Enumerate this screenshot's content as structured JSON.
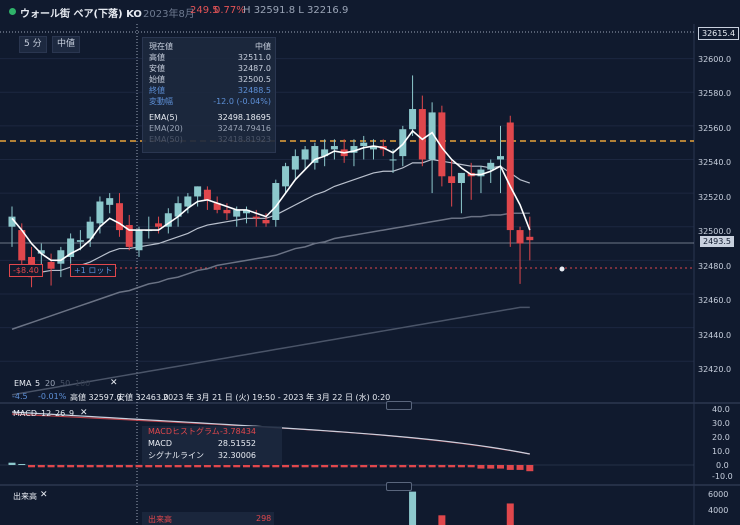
{
  "header": {
    "title": "ウォール街 ベア(下落) KO",
    "period": "2023年8月",
    "price": "249.5",
    "change": "0.77%",
    "hl": "H 32591.8 L 32216.9"
  },
  "toolbar": {
    "interval": "5 分",
    "price_type": "中値"
  },
  "tooltip": {
    "header_left": "現在値",
    "header_right": "中値",
    "rows": [
      {
        "label": "高値",
        "value": "32511.0"
      },
      {
        "label": "安値",
        "value": "32487.0"
      },
      {
        "label": "始値",
        "value": "32500.5"
      },
      {
        "label": "終値",
        "value": "32488.5"
      },
      {
        "label": "変動幅",
        "value": "-12.0 (-0.04%)"
      }
    ],
    "ema_rows": [
      {
        "label": "EMA(5)",
        "value": "32498.18695"
      },
      {
        "label": "EMA(20)",
        "value": "32474.79416"
      },
      {
        "label": "EMA(50)",
        "value": "32418.81923"
      }
    ]
  },
  "price_axis": [
    "32600.0",
    "32580.0",
    "32560.0",
    "32540.0",
    "32520.0",
    "32500.0",
    "32480.0",
    "32460.0",
    "32440.0",
    "32420.0"
  ],
  "price_axis_top": "32615.4",
  "current_price_tag": "2493.5",
  "position": {
    "pnl": "-$8.40",
    "lots": "+1 ロット"
  },
  "ema_legend": {
    "name": "EMA",
    "p1": "5",
    "p2": "20",
    "p3": "50",
    "p4": "100"
  },
  "range_bar": {
    "pct1": "-4.5",
    "pct2": "-0.01%",
    "high": "高値 32597.0",
    "low": "安値 32463.0",
    "range": "2023 年 3月 21 日 (火) 19:50 - 2023 年 3月 22 日 (水) 0:20"
  },
  "macd": {
    "label": "MACD",
    "p1": "12",
    "p2": "26",
    "p3": "9",
    "hist_label": "MACDヒストグラム",
    "hist_value": "-3.78434",
    "macd_label": "MACD",
    "macd_value": "28.51552",
    "signal_label": "シグナルライン",
    "signal_value": "32.30006",
    "axis": [
      "40.0",
      "30.0",
      "20.0",
      "10.0",
      "0.0",
      "-10.0"
    ]
  },
  "volume": {
    "label": "出来高",
    "value_label": "出来高",
    "value": "298",
    "axis": [
      "6000",
      "4000"
    ]
  },
  "colors": {
    "up": "#8cc8cc",
    "down": "#e0474c",
    "bg": "#101a2e",
    "dash": "#e8a33a"
  },
  "chart_data": {
    "type": "candlestick",
    "candles": [
      {
        "o": 32500,
        "h": 32512,
        "l": 32488,
        "c": 32506
      },
      {
        "o": 32498,
        "h": 32502,
        "l": 32476,
        "c": 32480
      },
      {
        "o": 32482,
        "h": 32488,
        "l": 32464,
        "c": 32470
      },
      {
        "o": 32484,
        "h": 32490,
        "l": 32474,
        "c": 32486
      },
      {
        "o": 32479,
        "h": 32484,
        "l": 32465,
        "c": 32475
      },
      {
        "o": 32478,
        "h": 32488,
        "l": 32470,
        "c": 32486
      },
      {
        "o": 32482,
        "h": 32496,
        "l": 32478,
        "c": 32493
      },
      {
        "o": 32491,
        "h": 32498,
        "l": 32486,
        "c": 32492
      },
      {
        "o": 32493,
        "h": 32506,
        "l": 32488,
        "c": 32503
      },
      {
        "o": 32502,
        "h": 32518,
        "l": 32496,
        "c": 32515
      },
      {
        "o": 32513,
        "h": 32520,
        "l": 32508,
        "c": 32517
      },
      {
        "o": 32514,
        "h": 32520,
        "l": 32494,
        "c": 32498
      },
      {
        "o": 32501,
        "h": 32507,
        "l": 32486,
        "c": 32488
      },
      {
        "o": 32486,
        "h": 32500,
        "l": 32482,
        "c": 32498
      },
      {
        "o": 32498,
        "h": 32506,
        "l": 32493,
        "c": 32498
      },
      {
        "o": 32502,
        "h": 32506,
        "l": 32496,
        "c": 32500
      },
      {
        "o": 32500,
        "h": 32511,
        "l": 32496,
        "c": 32508
      },
      {
        "o": 32506,
        "h": 32518,
        "l": 32500,
        "c": 32514
      },
      {
        "o": 32512,
        "h": 32520,
        "l": 32508,
        "c": 32518
      },
      {
        "o": 32518,
        "h": 32524,
        "l": 32512,
        "c": 32524
      },
      {
        "o": 32522,
        "h": 32524,
        "l": 32510,
        "c": 32516
      },
      {
        "o": 32514,
        "h": 32518,
        "l": 32508,
        "c": 32510
      },
      {
        "o": 32510,
        "h": 32514,
        "l": 32504,
        "c": 32508
      },
      {
        "o": 32506,
        "h": 32512,
        "l": 32500,
        "c": 32510
      },
      {
        "o": 32508,
        "h": 32512,
        "l": 32502,
        "c": 32510
      },
      {
        "o": 32506,
        "h": 32510,
        "l": 32500,
        "c": 32505
      },
      {
        "o": 32504,
        "h": 32508,
        "l": 32500,
        "c": 32502
      },
      {
        "o": 32504,
        "h": 32528,
        "l": 32500,
        "c": 32526
      },
      {
        "o": 32524,
        "h": 32538,
        "l": 32520,
        "c": 32536
      },
      {
        "o": 32534,
        "h": 32546,
        "l": 32528,
        "c": 32542
      },
      {
        "o": 32540,
        "h": 32548,
        "l": 32534,
        "c": 32546
      },
      {
        "o": 32538,
        "h": 32550,
        "l": 32534,
        "c": 32548
      },
      {
        "o": 32542,
        "h": 32552,
        "l": 32536,
        "c": 32546
      },
      {
        "o": 32546,
        "h": 32552,
        "l": 32540,
        "c": 32548
      },
      {
        "o": 32546,
        "h": 32552,
        "l": 32538,
        "c": 32542
      },
      {
        "o": 32544,
        "h": 32552,
        "l": 32536,
        "c": 32548
      },
      {
        "o": 32548,
        "h": 32554,
        "l": 32540,
        "c": 32550
      },
      {
        "o": 32546,
        "h": 32552,
        "l": 32540,
        "c": 32548
      },
      {
        "o": 32548,
        "h": 32552,
        "l": 32542,
        "c": 32546
      },
      {
        "o": 32540,
        "h": 32546,
        "l": 32532,
        "c": 32540
      },
      {
        "o": 32542,
        "h": 32560,
        "l": 32536,
        "c": 32558
      },
      {
        "o": 32558,
        "h": 32590,
        "l": 32554,
        "c": 32570
      },
      {
        "o": 32570,
        "h": 32578,
        "l": 32536,
        "c": 32540
      },
      {
        "o": 32540,
        "h": 32574,
        "l": 32520,
        "c": 32568
      },
      {
        "o": 32568,
        "h": 32572,
        "l": 32524,
        "c": 32530
      },
      {
        "o": 32530,
        "h": 32540,
        "l": 32512,
        "c": 32526
      },
      {
        "o": 32526,
        "h": 32532,
        "l": 32508,
        "c": 32532
      },
      {
        "o": 32532,
        "h": 32538,
        "l": 32516,
        "c": 32530
      },
      {
        "o": 32530,
        "h": 32536,
        "l": 32520,
        "c": 32534
      },
      {
        "o": 32534,
        "h": 32540,
        "l": 32526,
        "c": 32538
      },
      {
        "o": 32540,
        "h": 32560,
        "l": 32520,
        "c": 32542
      },
      {
        "o": 32562,
        "h": 32566,
        "l": 32488,
        "c": 32498
      },
      {
        "o": 32498,
        "h": 32500,
        "l": 32466,
        "c": 32490
      },
      {
        "o": 32494,
        "h": 32506,
        "l": 32480,
        "c": 32492
      }
    ],
    "ema5": [
      32505,
      32498,
      32490,
      32484,
      32480,
      32480,
      32484,
      32487,
      32492,
      32500,
      32505,
      32502,
      32498,
      32498,
      32498,
      32498,
      32502,
      32506,
      32511,
      32515,
      32516,
      32514,
      32512,
      32510,
      32510,
      32508,
      32506,
      32512,
      32520,
      32528,
      32534,
      32540,
      32542,
      32545,
      32544,
      32545,
      32547,
      32548,
      32547,
      32544,
      32549,
      32557,
      32552,
      32556,
      32547,
      32540,
      32535,
      32531,
      32531,
      32533,
      32536,
      32524,
      32513,
      32498
    ],
    "ema20": [
      32472,
      32473,
      32473,
      32473,
      32474,
      32474,
      32476,
      32477,
      32479,
      32482,
      32485,
      32487,
      32487,
      32488,
      32489,
      32490,
      32492,
      32494,
      32496,
      32499,
      32501,
      32502,
      32503,
      32504,
      32505,
      32505,
      32505,
      32507,
      32510,
      32513,
      32516,
      32519,
      32521,
      32524,
      32526,
      32528,
      32530,
      32532,
      32533,
      32533,
      32535,
      32538,
      32538,
      32540,
      32539,
      32538,
      32537,
      32536,
      32536,
      32535,
      32536,
      32532,
      32528,
      32526
    ],
    "ema50": [
      32439,
      32441,
      32443,
      32445,
      32447,
      32449,
      32451,
      32453,
      32455,
      32457,
      32459,
      32461,
      32462,
      32464,
      32466,
      32467,
      32469,
      32470,
      32472,
      32474,
      32475,
      32477,
      32478,
      32479,
      32480,
      32481,
      32482,
      32483,
      32485,
      32487,
      32488,
      32490,
      32491,
      32493,
      32494,
      32495,
      32496,
      32497,
      32498,
      32499,
      32500,
      32501,
      32502,
      32503,
      32504,
      32505,
      32505,
      32506,
      32506,
      32507,
      32507,
      32508,
      32508,
      32508
    ],
    "ema100": [
      32400,
      32401,
      32402,
      32403,
      32404,
      32405,
      32406,
      32407,
      32408,
      32409,
      32410,
      32411,
      32412,
      32413,
      32414,
      32415,
      32416,
      32417,
      32418,
      32419,
      32420,
      32421,
      32422,
      32423,
      32424,
      32425,
      32426,
      32427,
      32428,
      32429,
      32430,
      32431,
      32432,
      32433,
      32434,
      32435,
      32436,
      32437,
      32438,
      32439,
      32440,
      32441,
      32442,
      32443,
      32444,
      32445,
      32446,
      32447,
      32448,
      32449,
      32450,
      32451,
      32452,
      32452
    ],
    "macd_hist": [
      1,
      0,
      -1,
      -1,
      -1,
      -1,
      -1,
      -1,
      -1,
      -1,
      -1,
      -1,
      -1,
      -1,
      -1,
      -1,
      -1,
      -1,
      -1,
      -1,
      -1,
      -1,
      -1,
      -1,
      -1,
      -1,
      -1,
      -1,
      -1,
      -1,
      -1,
      -1,
      -1,
      -1,
      -1,
      -1,
      -1,
      -1,
      -1,
      -1,
      -1,
      -1,
      -1,
      -1,
      -1,
      -1,
      -1,
      -1,
      -2,
      -2,
      -2,
      -3,
      -3,
      -4
    ],
    "volume": [
      0,
      0,
      0,
      0,
      0,
      0,
      0,
      0,
      0,
      0,
      0,
      0,
      0,
      0,
      0,
      0,
      0,
      0,
      0,
      0,
      0,
      0,
      0,
      0,
      0,
      0,
      0,
      0,
      0,
      0,
      0,
      0,
      0,
      0,
      0,
      0,
      0,
      0,
      0,
      0,
      0,
      6200,
      0,
      0,
      1800,
      0,
      0,
      0,
      0,
      0,
      0,
      4000,
      0,
      0
    ],
    "ylim": [
      32410,
      32620
    ]
  }
}
